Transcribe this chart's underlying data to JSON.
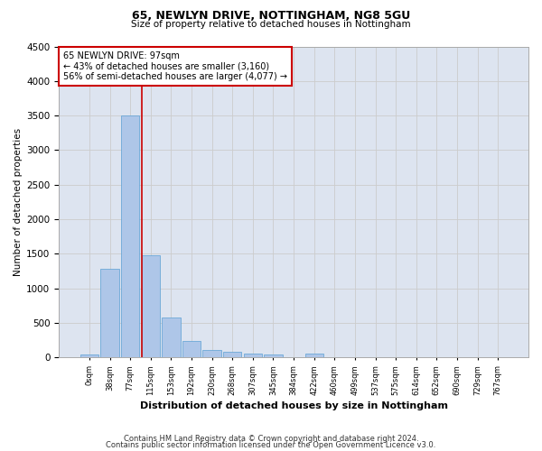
{
  "title1": "65, NEWLYN DRIVE, NOTTINGHAM, NG8 5GU",
  "title2": "Size of property relative to detached houses in Nottingham",
  "xlabel": "Distribution of detached houses by size in Nottingham",
  "ylabel": "Number of detached properties",
  "footer1": "Contains HM Land Registry data © Crown copyright and database right 2024.",
  "footer2": "Contains public sector information licensed under the Open Government Licence v3.0.",
  "bar_labels": [
    "0sqm",
    "38sqm",
    "77sqm",
    "115sqm",
    "153sqm",
    "192sqm",
    "230sqm",
    "268sqm",
    "307sqm",
    "345sqm",
    "384sqm",
    "422sqm",
    "460sqm",
    "499sqm",
    "537sqm",
    "575sqm",
    "614sqm",
    "652sqm",
    "690sqm",
    "729sqm",
    "767sqm"
  ],
  "bar_values": [
    40,
    1280,
    3500,
    1480,
    575,
    240,
    115,
    85,
    60,
    40,
    0,
    55,
    0,
    0,
    0,
    0,
    0,
    0,
    0,
    0,
    0
  ],
  "bar_color": "#aec6e8",
  "bar_edge_color": "#5a9fd4",
  "vline_x": 2.57,
  "vline_color": "#cc0000",
  "annotation_line1": "65 NEWLYN DRIVE: 97sqm",
  "annotation_line2": "← 43% of detached houses are smaller (3,160)",
  "annotation_line3": "56% of semi-detached houses are larger (4,077) →",
  "annotation_box_color": "#cc0000",
  "ylim": [
    0,
    4500
  ],
  "yticks": [
    0,
    500,
    1000,
    1500,
    2000,
    2500,
    3000,
    3500,
    4000,
    4500
  ],
  "grid_color": "#cccccc",
  "background_color": "#dde4f0",
  "figsize": [
    6.0,
    5.0
  ],
  "dpi": 100
}
